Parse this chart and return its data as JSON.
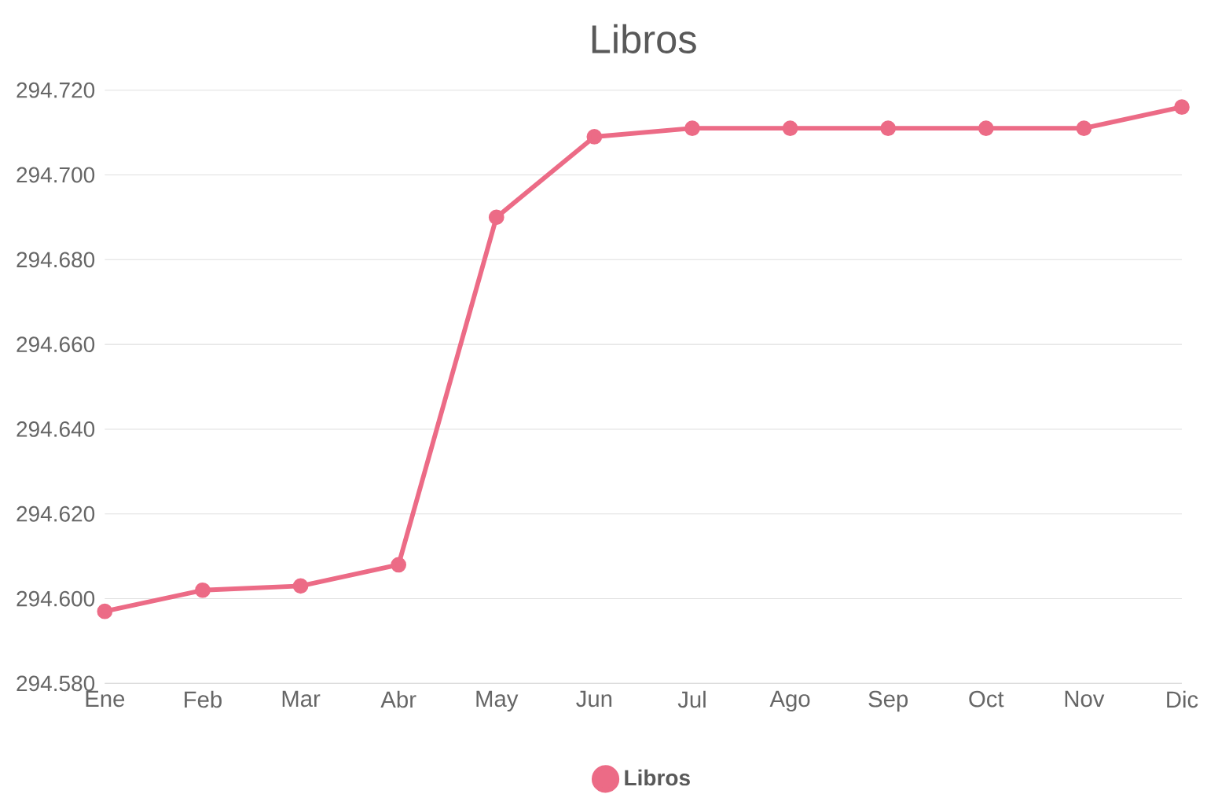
{
  "chart_data": {
    "type": "line",
    "title": "Libros",
    "categories": [
      "Ene",
      "Feb",
      "Mar",
      "Abr",
      "May",
      "Jun",
      "Jul",
      "Ago",
      "Sep",
      "Oct",
      "Nov",
      "Dic"
    ],
    "series": [
      {
        "name": "Libros",
        "color": "#ec6b86",
        "values": [
          294597,
          294602,
          294603,
          294608,
          294690,
          294709,
          294711,
          294711,
          294711,
          294711,
          294711,
          294716
        ]
      }
    ],
    "ylim": [
      294580,
      294720
    ],
    "yticks": [
      {
        "value": 294580,
        "label": "294.580"
      },
      {
        "value": 294600,
        "label": "294.600"
      },
      {
        "value": 294620,
        "label": "294.620"
      },
      {
        "value": 294640,
        "label": "294.640"
      },
      {
        "value": 294660,
        "label": "294.660"
      },
      {
        "value": 294680,
        "label": "294.680"
      },
      {
        "value": 294700,
        "label": "294.700"
      },
      {
        "value": 294720,
        "label": "294.720"
      }
    ],
    "grid": "y",
    "legend": "bottom",
    "marker": "circle",
    "line_style": "solid"
  }
}
